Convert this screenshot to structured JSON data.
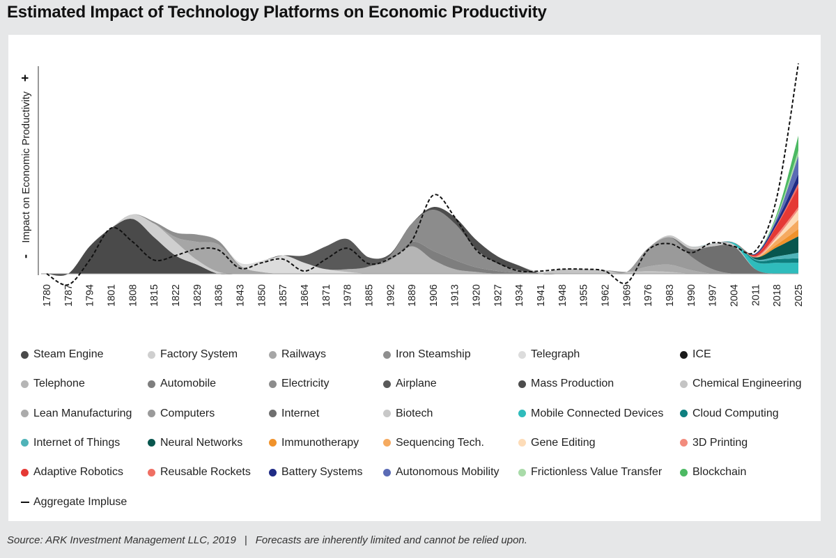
{
  "title": "Estimated Impact of Technology Platforms on Economic Productivity",
  "footer": {
    "source": "Source: ARK Investment Management LLC, 2019",
    "separator": "|",
    "disclaimer": "Forecasts are inherently limited and cannot be relied upon."
  },
  "chart_data": {
    "type": "area",
    "ylabel": "Impact on Economic Productivity",
    "y_minus_label": "-",
    "y_plus_label": "+",
    "x_tick_labels": [
      "1780",
      "1787",
      "1794",
      "1801",
      "1808",
      "1815",
      "1822",
      "1829",
      "1836",
      "1843",
      "1850",
      "1857",
      "1864",
      "1871",
      "1978",
      "1885",
      "1992",
      "1889",
      "1906",
      "1913",
      "1920",
      "1927",
      "1934",
      "1941",
      "1948",
      "1955",
      "1962",
      "1969",
      "1976",
      "1983",
      "1990",
      "1997",
      "2004",
      "2011",
      "2018",
      "2025"
    ],
    "stacked": true,
    "series": [
      {
        "name": "Steam Engine",
        "color": "#4a4a4a",
        "values": [
          0,
          0,
          3,
          5,
          6,
          4,
          2,
          1,
          0,
          0,
          0,
          0,
          0,
          0,
          0,
          0,
          0,
          0,
          0,
          0,
          0,
          0,
          0,
          0,
          0,
          0,
          0,
          0,
          0,
          0,
          0,
          0,
          0,
          0,
          0,
          0
        ]
      },
      {
        "name": "Factory System",
        "color": "#cfcfcf",
        "values": [
          0,
          0,
          0,
          0,
          0.5,
          1.5,
          1.5,
          0.5,
          0.2,
          0,
          0,
          0,
          0,
          0,
          0,
          0,
          0,
          0,
          0,
          0,
          0,
          0,
          0,
          0,
          0,
          0,
          0,
          0,
          0,
          0,
          0,
          0,
          0,
          0,
          0,
          0
        ]
      },
      {
        "name": "Railways",
        "color": "#a6a6a6",
        "values": [
          0,
          0,
          0,
          0,
          0,
          0,
          0.5,
          2,
          3,
          0.8,
          0.2,
          0,
          0,
          0,
          0,
          0,
          0,
          0,
          0,
          0,
          0,
          0,
          0,
          0,
          0,
          0,
          0,
          0,
          0,
          0,
          0,
          0,
          0,
          0,
          0,
          0
        ]
      },
      {
        "name": "Iron Steamship",
        "color": "#8f8f8f",
        "values": [
          0,
          0,
          0,
          0,
          0,
          0.2,
          0.5,
          0.8,
          0.4,
          0.1,
          0,
          0,
          0,
          0,
          0,
          0,
          0,
          0,
          0,
          0,
          0,
          0,
          0,
          0,
          0,
          0,
          0,
          0,
          0,
          0,
          0,
          0,
          0,
          0,
          0,
          0
        ]
      },
      {
        "name": "Telegraph",
        "color": "#dcdcdc",
        "values": [
          0,
          0,
          0,
          0,
          0,
          0,
          0,
          0,
          0,
          0.3,
          1.2,
          2,
          1.2,
          0.5,
          0.2,
          0,
          0,
          0,
          0,
          0,
          0,
          0,
          0,
          0,
          0,
          0,
          0,
          0,
          0,
          0,
          0,
          0,
          0,
          0,
          0,
          0
        ]
      },
      {
        "name": "ICE",
        "color": "#1a1a1a",
        "values": [
          0,
          0,
          0,
          0,
          0,
          0,
          0,
          0,
          0,
          0,
          0,
          0,
          0,
          0,
          0,
          0,
          0,
          0,
          0,
          0,
          0,
          0,
          0,
          0,
          0,
          0,
          0,
          0,
          0,
          0,
          0,
          0,
          0,
          0,
          0,
          0
        ]
      },
      {
        "name": "Telephone",
        "color": "#b5b5b5",
        "values": [
          0,
          0,
          0,
          0,
          0,
          0,
          0,
          0,
          0,
          0,
          0,
          0,
          0,
          0,
          0.3,
          0.8,
          1.5,
          3,
          1.5,
          0.5,
          0.2,
          0,
          0,
          0,
          0,
          0,
          0,
          0,
          0,
          0,
          0,
          0,
          0,
          0,
          0,
          0
        ]
      },
      {
        "name": "Automobile",
        "color": "#7e7e7e",
        "values": [
          0,
          0,
          0,
          0,
          0,
          0,
          0,
          0,
          0,
          0,
          0,
          0,
          0,
          0,
          0,
          0,
          0,
          0.5,
          1,
          1,
          0.5,
          0.3,
          0.1,
          0,
          0,
          0,
          0,
          0,
          0,
          0,
          0,
          0,
          0,
          0,
          0,
          0
        ]
      },
      {
        "name": "Electricity",
        "color": "#8c8c8c",
        "values": [
          0,
          0,
          0,
          0,
          0,
          0,
          0,
          0,
          0,
          0,
          0,
          0,
          0,
          0,
          0,
          0,
          0.5,
          2,
          4.5,
          4,
          2,
          0.8,
          0.3,
          0,
          0,
          0,
          0,
          0,
          0,
          0,
          0,
          0,
          0,
          0,
          0,
          0
        ]
      },
      {
        "name": "Airplane",
        "color": "#595959",
        "values": [
          0,
          0,
          0,
          0,
          0,
          0,
          0,
          0,
          0,
          0,
          0,
          0,
          0.8,
          2.5,
          3.3,
          1,
          0.2,
          0,
          0,
          0,
          0,
          0,
          0,
          0,
          0,
          0,
          0,
          0,
          0,
          0,
          0,
          0,
          0,
          0,
          0,
          0
        ]
      },
      {
        "name": "Mass Production",
        "color": "#4d4d4d",
        "values": [
          0,
          0,
          0,
          0,
          0,
          0,
          0,
          0,
          0,
          0,
          0,
          0,
          0,
          0,
          0,
          0,
          0,
          0,
          0.3,
          0.7,
          1,
          0.8,
          0.5,
          0,
          0,
          0,
          0,
          0,
          0,
          0,
          0,
          0,
          0,
          0,
          0,
          0
        ]
      },
      {
        "name": "Chemical Engineering",
        "color": "#c4c4c4",
        "values": [
          0,
          0,
          0,
          0,
          0,
          0,
          0,
          0,
          0,
          0,
          0,
          0,
          0,
          0,
          0,
          0,
          0,
          0,
          0,
          0,
          0,
          0,
          0,
          0.2,
          0.5,
          0.5,
          0.4,
          0.2,
          0.3,
          0.2,
          0,
          0,
          0,
          0,
          0,
          0
        ]
      },
      {
        "name": "Lean Manufacturing",
        "color": "#ababab",
        "values": [
          0,
          0,
          0,
          0,
          0,
          0,
          0,
          0,
          0,
          0,
          0,
          0,
          0,
          0,
          0,
          0,
          0,
          0,
          0,
          0,
          0,
          0,
          0,
          0,
          0,
          0,
          0,
          0,
          0.5,
          0.8,
          0.4,
          0,
          0,
          0,
          0,
          0
        ]
      },
      {
        "name": "Computers",
        "color": "#9a9a9a",
        "values": [
          0,
          0,
          0,
          0,
          0,
          0,
          0,
          0,
          0,
          0,
          0,
          0,
          0,
          0,
          0,
          0,
          0,
          0,
          0,
          0,
          0,
          0,
          0,
          0,
          0,
          0,
          0,
          0,
          2,
          3,
          1.5,
          0.5,
          0,
          0,
          0,
          0
        ]
      },
      {
        "name": "Internet",
        "color": "#6f6f6f",
        "values": [
          0,
          0,
          0,
          0,
          0,
          0,
          0,
          0,
          0,
          0,
          0,
          0,
          0,
          0,
          0,
          0,
          0,
          0,
          0,
          0,
          0,
          0,
          0,
          0,
          0,
          0,
          0,
          0,
          0,
          0,
          0.8,
          2.5,
          3,
          0.5,
          0,
          0
        ]
      },
      {
        "name": "Biotech",
        "color": "#c8c8c8",
        "values": [
          0,
          0,
          0,
          0,
          0,
          0,
          0,
          0,
          0,
          0,
          0,
          0,
          0,
          0,
          0,
          0,
          0,
          0,
          0,
          0,
          0,
          0,
          0,
          0,
          0,
          0,
          0,
          0,
          0,
          0.2,
          0.3,
          0.3,
          0.2,
          0,
          0,
          0
        ]
      },
      {
        "name": "Mobile Connected Devices",
        "color": "#2fbcbc",
        "values": [
          0,
          0,
          0,
          0,
          0,
          0,
          0,
          0,
          0,
          0,
          0,
          0,
          0,
          0,
          0,
          0,
          0,
          0,
          0,
          0,
          0,
          0,
          0,
          0,
          0,
          0,
          0,
          0,
          0,
          0,
          0,
          0,
          0.2,
          0.8,
          1.2,
          1.2
        ]
      },
      {
        "name": "Cloud Computing",
        "color": "#0e7f7f",
        "values": [
          0,
          0,
          0,
          0,
          0,
          0,
          0,
          0,
          0,
          0,
          0,
          0,
          0,
          0,
          0,
          0,
          0,
          0,
          0,
          0,
          0,
          0,
          0,
          0,
          0,
          0,
          0,
          0,
          0,
          0,
          0,
          0,
          0,
          0.2,
          0.4,
          0.5
        ]
      },
      {
        "name": "Internet of Things",
        "color": "#4fb3b8",
        "values": [
          0,
          0,
          0,
          0,
          0,
          0,
          0,
          0,
          0,
          0,
          0,
          0,
          0,
          0,
          0,
          0,
          0,
          0,
          0,
          0,
          0,
          0,
          0,
          0,
          0,
          0,
          0,
          0,
          0,
          0,
          0,
          0,
          0,
          0.1,
          0.3,
          0.6
        ]
      },
      {
        "name": "Neural Networks",
        "color": "#08564e",
        "values": [
          0,
          0,
          0,
          0,
          0,
          0,
          0,
          0,
          0,
          0,
          0,
          0,
          0,
          0,
          0,
          0,
          0,
          0,
          0,
          0,
          0,
          0,
          0,
          0,
          0,
          0,
          0,
          0,
          0,
          0,
          0,
          0,
          0,
          0.2,
          1,
          1.8
        ]
      },
      {
        "name": "Immunotherapy",
        "color": "#f0922b",
        "values": [
          0,
          0,
          0,
          0,
          0,
          0,
          0,
          0,
          0,
          0,
          0,
          0,
          0,
          0,
          0,
          0,
          0,
          0,
          0,
          0,
          0,
          0,
          0,
          0,
          0,
          0,
          0,
          0,
          0,
          0,
          0,
          0,
          0,
          0,
          0.3,
          0.8
        ]
      },
      {
        "name": "Sequencing Tech.",
        "color": "#f5aa60",
        "values": [
          0,
          0,
          0,
          0,
          0,
          0,
          0,
          0,
          0,
          0,
          0,
          0,
          0,
          0,
          0,
          0,
          0,
          0,
          0,
          0,
          0,
          0,
          0,
          0,
          0,
          0,
          0,
          0,
          0,
          0,
          0,
          0,
          0,
          0,
          0.5,
          1
        ]
      },
      {
        "name": "Gene Editing",
        "color": "#fddcb8",
        "values": [
          0,
          0,
          0,
          0,
          0,
          0,
          0,
          0,
          0,
          0,
          0,
          0,
          0,
          0,
          0,
          0,
          0,
          0,
          0,
          0,
          0,
          0,
          0,
          0,
          0,
          0,
          0,
          0,
          0,
          0,
          0,
          0,
          0,
          0,
          0.3,
          1.1
        ]
      },
      {
        "name": "3D Printing",
        "color": "#f28b7d",
        "values": [
          0,
          0,
          0,
          0,
          0,
          0,
          0,
          0,
          0,
          0,
          0,
          0,
          0,
          0,
          0,
          0,
          0,
          0,
          0,
          0,
          0,
          0,
          0,
          0,
          0,
          0,
          0,
          0,
          0,
          0,
          0,
          0,
          0,
          0.1,
          0.3,
          0.3
        ]
      },
      {
        "name": "Adaptive Robotics",
        "color": "#e53935",
        "values": [
          0,
          0,
          0,
          0,
          0,
          0,
          0,
          0,
          0,
          0,
          0,
          0,
          0,
          0,
          0,
          0,
          0,
          0,
          0,
          0,
          0,
          0,
          0,
          0,
          0,
          0,
          0,
          0,
          0,
          0,
          0,
          0,
          0,
          0.2,
          1,
          2.2
        ]
      },
      {
        "name": "Reusable Rockets",
        "color": "#ef6f63",
        "values": [
          0,
          0,
          0,
          0,
          0,
          0,
          0,
          0,
          0,
          0,
          0,
          0,
          0,
          0,
          0,
          0,
          0,
          0,
          0,
          0,
          0,
          0,
          0,
          0,
          0,
          0,
          0,
          0,
          0,
          0,
          0,
          0,
          0,
          0,
          0.1,
          0.4
        ]
      },
      {
        "name": "Battery Systems",
        "color": "#1f2b85",
        "values": [
          0,
          0,
          0,
          0,
          0,
          0,
          0,
          0,
          0,
          0,
          0,
          0,
          0,
          0,
          0,
          0,
          0,
          0,
          0,
          0,
          0,
          0,
          0,
          0,
          0,
          0,
          0,
          0,
          0,
          0,
          0,
          0,
          0,
          0.1,
          0.4,
          1
        ]
      },
      {
        "name": "Autonomous Mobility",
        "color": "#5b6bb5",
        "values": [
          0,
          0,
          0,
          0,
          0,
          0,
          0,
          0,
          0,
          0,
          0,
          0,
          0,
          0,
          0,
          0,
          0,
          0,
          0,
          0,
          0,
          0,
          0,
          0,
          0,
          0,
          0,
          0,
          0,
          0,
          0,
          0,
          0,
          0,
          0.3,
          2
        ]
      },
      {
        "name": "Frictionless Value Transfer",
        "color": "#a9dba9",
        "values": [
          0,
          0,
          0,
          0,
          0,
          0,
          0,
          0,
          0,
          0,
          0,
          0,
          0,
          0,
          0,
          0,
          0,
          0,
          0,
          0,
          0,
          0,
          0,
          0,
          0,
          0,
          0,
          0,
          0,
          0,
          0,
          0,
          0,
          0,
          0.2,
          0.6
        ]
      },
      {
        "name": "Blockchain",
        "color": "#4cb963",
        "values": [
          0,
          0,
          0,
          0,
          0,
          0,
          0,
          0,
          0,
          0,
          0,
          0,
          0,
          0,
          0,
          0,
          0,
          0,
          0,
          0,
          0,
          0,
          0,
          0,
          0,
          0,
          0,
          0,
          0,
          0,
          0,
          0,
          0,
          0,
          0.3,
          1.6
        ]
      }
    ],
    "aggregate": {
      "name": "Aggregate Impluse",
      "style": "dashed",
      "color": "#111111",
      "values": [
        0,
        -1.2,
        1.5,
        5,
        3.5,
        1.5,
        2,
        2.7,
        2.6,
        0.6,
        1.2,
        1.6,
        0.3,
        1.6,
        2.8,
        1.1,
        1.7,
        3.6,
        8.6,
        6.2,
        2.6,
        1.2,
        0.3,
        0.3,
        0.5,
        0.5,
        0.3,
        -1,
        2.6,
        3.3,
        2.3,
        3.4,
        3,
        2.5,
        8.4,
        23
      ]
    },
    "ylim": [
      -3,
      24
    ],
    "grid": false,
    "legend_position": "bottom"
  }
}
